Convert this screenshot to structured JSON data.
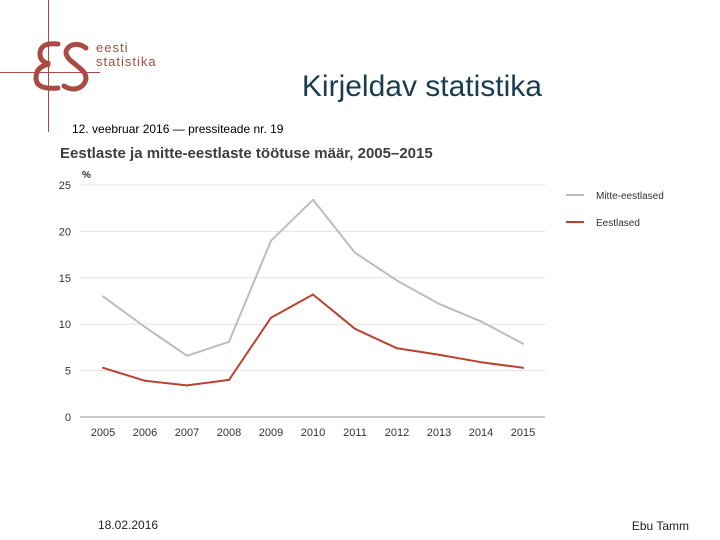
{
  "slide": {
    "title": "Kirjeldav statistika",
    "subtitle": "12. veebruar 2016 — pressiteade nr. 19",
    "footer_date": "18.02.2016",
    "footer_author": "Ebu Tamm"
  },
  "logo": {
    "line1": "eesti",
    "line2": "statistika",
    "color": "#a94a44"
  },
  "chart_data": {
    "type": "line",
    "title": "Eestlaste ja mitte-eestlaste töötuse määr, 2005–2015",
    "ylabel": "%",
    "xlabel": "",
    "x": [
      "2005",
      "2006",
      "2007",
      "2008",
      "2009",
      "2010",
      "2011",
      "2012",
      "2013",
      "2014",
      "2015"
    ],
    "ylim": [
      0,
      25
    ],
    "yticks": [
      0,
      5,
      10,
      15,
      20,
      25
    ],
    "grid": true,
    "legend": "right",
    "series": [
      {
        "name": "Mitte-eestlased",
        "color": "#bdbdbd",
        "values": [
          13.0,
          9.7,
          6.6,
          8.1,
          19.0,
          23.4,
          17.7,
          14.7,
          12.2,
          10.3,
          7.9
        ]
      },
      {
        "name": "Eestlased",
        "color": "#b8442f",
        "values": [
          5.3,
          3.9,
          3.4,
          4.0,
          10.7,
          13.2,
          9.5,
          7.4,
          6.7,
          5.9,
          5.3
        ]
      }
    ]
  }
}
